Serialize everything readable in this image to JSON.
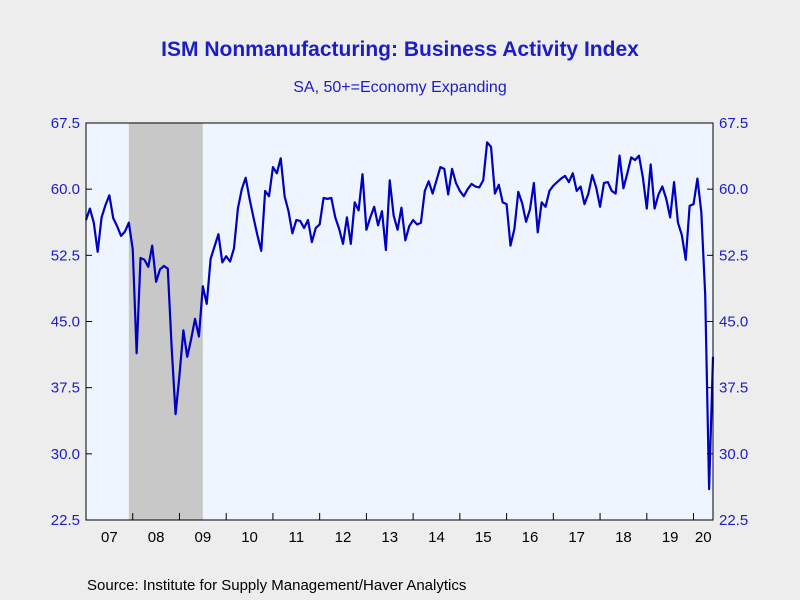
{
  "title": "ISM Nonmanufacturing: Business Activity Index",
  "subtitle": "SA, 50+=Economy Expanding",
  "source": "Source:  Institute for Supply Management/Haver Analytics",
  "colors": {
    "line": "#0000c0",
    "text": "#1c1cc8",
    "plot_bg": "#eef5fe",
    "recession": "#c8c8c8",
    "page_bg": "#ededed"
  },
  "chart_data": {
    "type": "line",
    "frequency": "monthly",
    "x_start": "2007-01",
    "xlim": [
      "2007-01",
      "2020-06"
    ],
    "ylim": [
      22.5,
      67.5
    ],
    "yticks": [
      "22.5",
      "30.0",
      "37.5",
      "45.0",
      "52.5",
      "60.0",
      "67.5"
    ],
    "xticks": [
      "07",
      "08",
      "09",
      "10",
      "11",
      "12",
      "13",
      "14",
      "15",
      "16",
      "17",
      "18",
      "19",
      "20"
    ],
    "dual_y_axis": true,
    "grid": false,
    "legend": "none",
    "shaded_periods": [
      {
        "start": "2007-12",
        "end": "2009-06"
      }
    ],
    "series": [
      {
        "values": [
          56.5,
          57.8,
          56.2,
          52.9,
          56.8,
          58.2,
          59.3,
          56.7,
          55.8,
          54.7,
          55.2,
          56.2,
          53.2,
          41.4,
          52.2,
          52.0,
          51.2,
          53.6,
          49.5,
          50.9,
          51.3,
          51.0,
          42.0,
          34.5,
          38.9,
          44.0,
          41.0,
          43.0,
          45.3,
          43.3,
          49.0,
          47.0,
          52.1,
          53.5,
          54.9,
          51.7,
          52.4,
          51.8,
          53.3,
          57.8,
          60.0,
          61.3,
          58.9,
          56.8,
          54.8,
          53.0,
          59.8,
          59.2,
          62.5,
          61.8,
          63.5,
          59.2,
          57.5,
          55.0,
          56.5,
          56.4,
          55.6,
          56.5,
          54.0,
          55.6,
          56.0,
          59.0,
          58.9,
          59.0,
          56.8,
          55.5,
          53.8,
          56.8,
          53.8,
          58.5,
          57.6,
          61.7,
          55.4,
          56.8,
          58.0,
          55.9,
          57.5,
          53.1,
          61.0,
          57.0,
          55.4,
          57.9,
          54.2,
          55.8,
          56.5,
          56.0,
          56.2,
          59.8,
          60.9,
          59.5,
          61.0,
          62.5,
          62.3,
          59.4,
          62.3,
          60.7,
          59.8,
          59.2,
          60.0,
          60.6,
          60.3,
          60.2,
          61.0,
          65.3,
          64.8,
          59.5,
          60.5,
          58.5,
          58.3,
          53.6,
          55.5,
          59.7,
          58.4,
          56.3,
          57.7,
          60.7,
          55.1,
          58.5,
          58.0,
          59.8,
          60.4,
          60.8,
          61.2,
          61.5,
          60.8,
          61.8,
          59.8,
          60.3,
          58.3,
          59.5,
          61.6,
          60.2,
          58.0,
          60.7,
          60.8,
          59.8,
          59.5,
          63.8,
          60.1,
          61.8,
          63.6,
          63.3,
          63.8,
          61.3,
          57.8,
          62.8,
          57.8,
          59.4,
          60.3,
          58.9,
          56.8,
          60.8,
          56.2,
          54.8,
          52.0,
          58.1,
          58.3,
          61.2,
          57.4,
          48.0,
          26.0,
          41.0
        ]
      }
    ]
  }
}
